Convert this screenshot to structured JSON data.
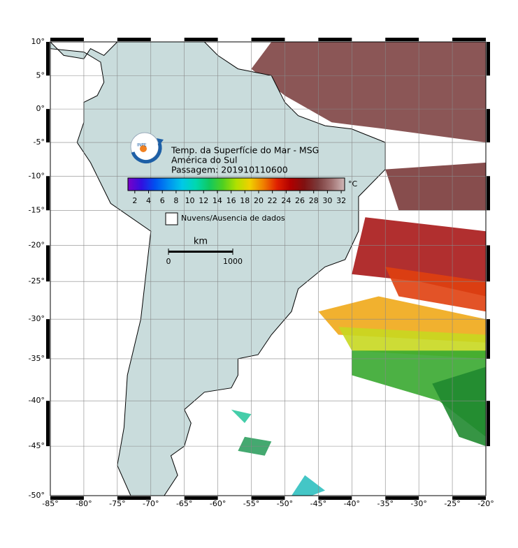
{
  "header": {
    "title": "Temp. da Superfície do Mar - MSG",
    "region": "América do Sul",
    "pass": "Passagem: 201910110600"
  },
  "colorbar": {
    "range": [
      1,
      32.5
    ],
    "ticks": [
      2,
      4,
      6,
      8,
      10,
      12,
      14,
      16,
      18,
      20,
      22,
      24,
      26,
      28,
      30,
      32
    ],
    "unit": "°C",
    "colors": [
      "#7a00c8",
      "#3010e0",
      "#0050f0",
      "#0090f0",
      "#00c8e8",
      "#00d8b0",
      "#10c860",
      "#50d020",
      "#b0e000",
      "#f0d000",
      "#f08000",
      "#e02000",
      "#b00000",
      "#801010",
      "#7a3a3a",
      "#a07070",
      "#d0b8b8"
    ]
  },
  "legend": {
    "cloud_label": "Nuvens/Ausencia de dados"
  },
  "scale": {
    "unit": "km",
    "ticks": [
      0,
      1000
    ]
  },
  "map": {
    "lon_range": [
      -85,
      -20
    ],
    "lat_range": [
      -50,
      10
    ],
    "lon_ticks": [
      {
        "value": -85,
        "label": "-85°"
      },
      {
        "value": -80,
        "label": "-80°"
      },
      {
        "value": -75,
        "label": "-75°"
      },
      {
        "value": -70,
        "label": "-70°"
      },
      {
        "value": -65,
        "label": "-65°"
      },
      {
        "value": -60,
        "label": "-60°"
      },
      {
        "value": -55,
        "label": "-55°"
      },
      {
        "value": -50,
        "label": "-50°"
      },
      {
        "value": -45,
        "label": "-45°"
      },
      {
        "value": -40,
        "label": "-40°"
      },
      {
        "value": -35,
        "label": "-35°"
      },
      {
        "value": -30,
        "label": "-30°"
      },
      {
        "value": -25,
        "label": "-25°"
      },
      {
        "value": -20,
        "label": "-20°"
      }
    ],
    "lat_ticks": [
      {
        "value": 10,
        "label": "10°"
      },
      {
        "value": 5,
        "label": "5°"
      },
      {
        "value": 0,
        "label": "0°"
      },
      {
        "value": -5,
        "label": "-5°"
      },
      {
        "value": -10,
        "label": "-10°"
      },
      {
        "value": -15,
        "label": "-15°"
      },
      {
        "value": -20,
        "label": "-20°"
      },
      {
        "value": -25,
        "label": "-25°"
      },
      {
        "value": -30,
        "label": "-30°"
      },
      {
        "value": -35,
        "label": "-35°"
      },
      {
        "value": -40,
        "label": "-40°"
      },
      {
        "value": -45,
        "label": "-45°"
      },
      {
        "value": -50,
        "label": "-50°"
      }
    ]
  }
}
